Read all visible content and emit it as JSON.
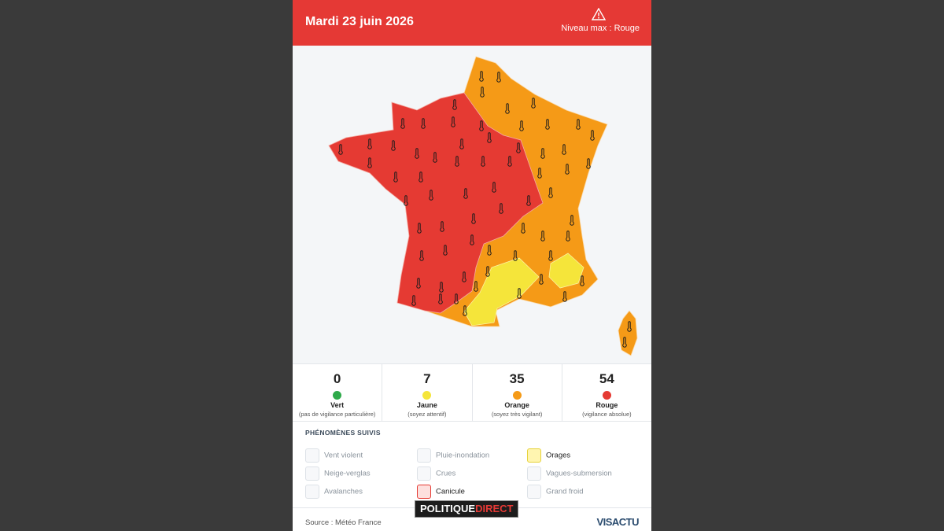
{
  "header": {
    "title": "Mardi 23 juin 2026",
    "max_level": "Niveau max : Rouge"
  },
  "levels": [
    {
      "count": 0,
      "name": "Vert",
      "note": "(pas de vigilance particulière)"
    },
    {
      "count": 7,
      "name": "Jaune",
      "note": "(soyez attentif)"
    },
    {
      "count": 35,
      "name": "Orange",
      "note": "(soyez très vigilant)"
    },
    {
      "count": 54,
      "name": "Rouge",
      "note": "(vigilance absolue)"
    }
  ],
  "phenomena": {
    "title": "PHÉNOMÈNES SUIVIS",
    "items": [
      "Vent violent",
      "Pluie-inondation",
      "Orages",
      "Neige-verglas",
      "Crues",
      "Vagues-submersion",
      "Avalanches",
      "Canicule",
      "Grand froid"
    ]
  },
  "footer": {
    "source": "Source : Météo France",
    "brand": "VISACTU",
    "watermark": [
      "POLITIQUE",
      "DIRECT"
    ]
  }
}
